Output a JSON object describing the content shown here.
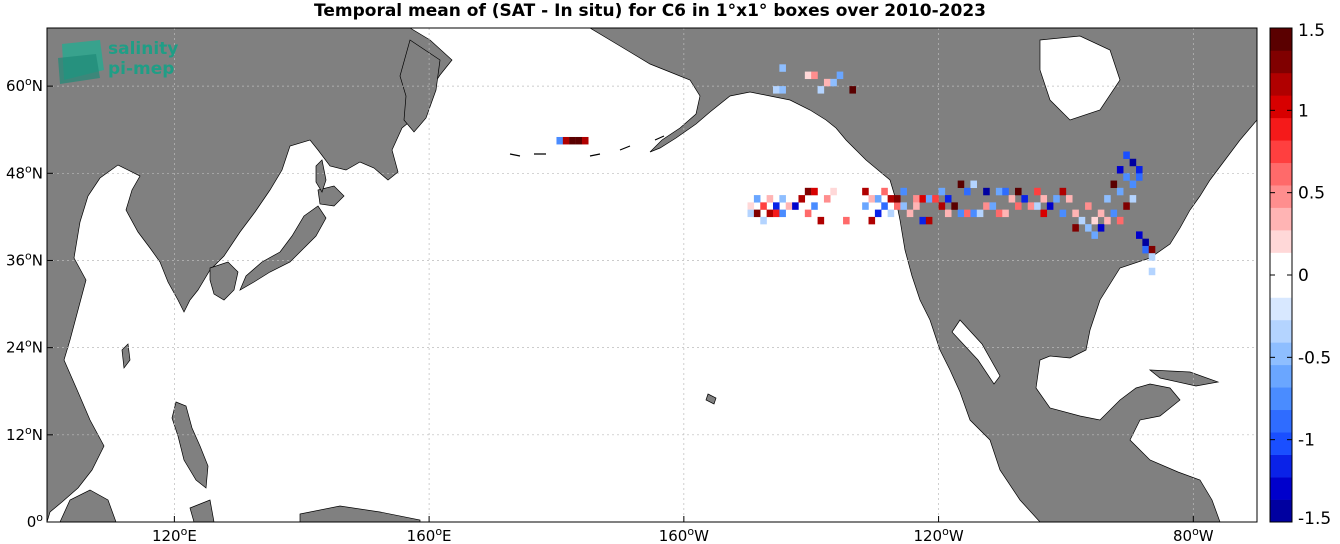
{
  "title": "Temporal mean of (SAT - In situ) for C6 in 1°x1° boxes over 2010-2023",
  "logo": {
    "line1": "salinity",
    "line2": "pi-mep",
    "color": "#1f9e86"
  },
  "colors": {
    "land": "#808080",
    "ocean": "#ffffff",
    "grid": "#bbbbbb"
  },
  "map": {
    "lon_range": [
      100,
      290
    ],
    "lat_range": [
      0,
      68
    ],
    "lon_ticks": [
      {
        "value": 120,
        "base": "120",
        "deg": "o",
        "hemi": "E"
      },
      {
        "value": 160,
        "base": "160",
        "deg": "o",
        "hemi": "E"
      },
      {
        "value": 200,
        "base": "160",
        "deg": "o",
        "hemi": "W"
      },
      {
        "value": 240,
        "base": "120",
        "deg": "o",
        "hemi": "W"
      },
      {
        "value": 280,
        "base": "80",
        "deg": "o",
        "hemi": "W"
      }
    ],
    "lat_ticks": [
      {
        "value": 0,
        "base": "0",
        "deg": "o",
        "hemi": ""
      },
      {
        "value": 12,
        "base": "12",
        "deg": "o",
        "hemi": "N"
      },
      {
        "value": 24,
        "base": "24",
        "deg": "o",
        "hemi": "N"
      },
      {
        "value": 36,
        "base": "36",
        "deg": "o",
        "hemi": "N"
      },
      {
        "value": 48,
        "base": "48",
        "deg": "o",
        "hemi": "N"
      },
      {
        "value": 60,
        "base": "60",
        "deg": "o",
        "hemi": "N"
      }
    ]
  },
  "colorbar": {
    "min": -1.5,
    "max": 1.5,
    "ticks": [
      "1.5",
      "1",
      "0.5",
      "0",
      "-0.5",
      "-1",
      "-1.5"
    ],
    "tick_values": [
      1.5,
      1,
      0.5,
      0,
      -0.5,
      -1,
      -1.5
    ],
    "steps": [
      "#0000a0",
      "#0000cc",
      "#0a22e8",
      "#1a4fff",
      "#2f6cff",
      "#4a8cff",
      "#6aa6ff",
      "#8ebeff",
      "#b4d4ff",
      "#d8e8ff",
      "#ffffff",
      "#ffffff",
      "#ffd8d8",
      "#ffb4b4",
      "#ff8e8e",
      "#ff6a6a",
      "#ff3f3f",
      "#f51a1a",
      "#d80000",
      "#b00000",
      "#800000",
      "#5a0000"
    ]
  },
  "chart_data": {
    "type": "heatmap",
    "value_name": "SAT - In situ",
    "cells": [
      [
        -180,
        52,
        -0.7
      ],
      [
        -179,
        52,
        1.2
      ],
      [
        -178,
        52,
        1.5
      ],
      [
        -177,
        52,
        1.4
      ],
      [
        -176,
        52,
        1.1
      ],
      [
        -150,
        43,
        0.2
      ],
      [
        -150,
        42,
        -0.3
      ],
      [
        -149,
        44,
        -0.6
      ],
      [
        -149,
        42,
        1.3
      ],
      [
        -148,
        43,
        0.7
      ],
      [
        -148,
        41,
        -0.4
      ],
      [
        -147,
        44,
        0.4
      ],
      [
        -147,
        42,
        1.1
      ],
      [
        -146,
        43,
        -1.1
      ],
      [
        -146,
        42,
        0.9
      ],
      [
        -145,
        44,
        -0.5
      ],
      [
        -145,
        42,
        -0.8
      ],
      [
        -144,
        43,
        0.3
      ],
      [
        -143,
        43,
        -1.3
      ],
      [
        -142,
        44,
        1.2
      ],
      [
        -141,
        45,
        1.3
      ],
      [
        -141,
        42,
        0.6
      ],
      [
        -140,
        45,
        1.0
      ],
      [
        -140,
        43,
        -0.7
      ],
      [
        -139,
        41,
        1.2
      ],
      [
        -138,
        44,
        0.5
      ],
      [
        -137,
        45,
        0.2
      ],
      [
        -135,
        41,
        0.6
      ],
      [
        -132,
        45,
        1.2
      ],
      [
        -132,
        43,
        -0.6
      ],
      [
        -131,
        44,
        0.3
      ],
      [
        -131,
        41,
        1.1
      ],
      [
        -130,
        44,
        -0.6
      ],
      [
        -130,
        42,
        -1.2
      ],
      [
        -129,
        45,
        0.6
      ],
      [
        -129,
        43,
        -0.9
      ],
      [
        -128,
        44,
        1.1
      ],
      [
        -128,
        42,
        -0.3
      ],
      [
        -127,
        43,
        0.6
      ],
      [
        -127,
        44,
        1.3
      ],
      [
        -126,
        45,
        -0.7
      ],
      [
        -126,
        43,
        -0.5
      ],
      [
        -125,
        42,
        0.4
      ],
      [
        -124,
        44,
        0.5
      ],
      [
        -124,
        43,
        0.3
      ],
      [
        -123,
        44,
        1.0
      ],
      [
        -123,
        41,
        -1.2
      ],
      [
        -122,
        44,
        -0.6
      ],
      [
        -122,
        41,
        1.1
      ],
      [
        -121,
        44,
        0.8
      ],
      [
        -120,
        45,
        -0.6
      ],
      [
        -120,
        43,
        1.2
      ],
      [
        -119,
        44,
        -1.2
      ],
      [
        -119,
        42,
        0.4
      ],
      [
        -118,
        43,
        1.4
      ],
      [
        -117,
        46,
        1.4
      ],
      [
        -117,
        42,
        -0.8
      ],
      [
        -116,
        45,
        -0.9
      ],
      [
        -116,
        42,
        0.6
      ],
      [
        -115,
        46,
        -0.4
      ],
      [
        -115,
        42,
        -0.7
      ],
      [
        -114,
        42,
        -0.3
      ],
      [
        -113,
        45,
        -1.4
      ],
      [
        -113,
        43,
        0.5
      ],
      [
        -112,
        43,
        -0.6
      ],
      [
        -111,
        45,
        -0.6
      ],
      [
        -111,
        42,
        0.6
      ],
      [
        -110,
        45,
        -0.9
      ],
      [
        -110,
        42,
        0.3
      ],
      [
        -109,
        44,
        0.3
      ],
      [
        -108,
        45,
        1.4
      ],
      [
        -108,
        43,
        0.6
      ],
      [
        -107,
        44,
        -1.2
      ],
      [
        -106,
        43,
        0.5
      ],
      [
        -105,
        45,
        0.8
      ],
      [
        -105,
        43,
        -0.4
      ],
      [
        -104,
        44,
        0.4
      ],
      [
        -104,
        42,
        1.0
      ],
      [
        -103,
        43,
        -1.3
      ],
      [
        -102,
        44,
        -0.6
      ],
      [
        -101,
        45,
        1.1
      ],
      [
        -101,
        42,
        -0.7
      ],
      [
        -100,
        44,
        0.3
      ],
      [
        -99,
        42,
        0.4
      ],
      [
        -99,
        40,
        1.3
      ],
      [
        -98,
        41,
        -0.3
      ],
      [
        -97,
        43,
        0.5
      ],
      [
        -97,
        40,
        -0.5
      ],
      [
        -96,
        41,
        0.2
      ],
      [
        -96,
        39,
        -0.6
      ],
      [
        -95,
        42,
        0.3
      ],
      [
        -95,
        40,
        -1.3
      ],
      [
        -94,
        44,
        -0.5
      ],
      [
        -94,
        41,
        0.4
      ],
      [
        -93,
        46,
        1.5
      ],
      [
        -93,
        42,
        -0.8
      ],
      [
        -92,
        48,
        -1.3
      ],
      [
        -92,
        45,
        -0.6
      ],
      [
        -92,
        41,
        0.6
      ],
      [
        -91,
        50,
        -1.0
      ],
      [
        -91,
        47,
        -0.8
      ],
      [
        -91,
        43,
        1.3
      ],
      [
        -90,
        49,
        -1.4
      ],
      [
        -90,
        46,
        -0.7
      ],
      [
        -90,
        44,
        -0.4
      ],
      [
        -89,
        48,
        -1.1
      ],
      [
        -89,
        47,
        -0.9
      ],
      [
        -89,
        39,
        -1.3
      ],
      [
        -88,
        38,
        -1.5
      ],
      [
        -88,
        37,
        -0.9
      ],
      [
        -87,
        37,
        1.3
      ],
      [
        -87,
        36,
        -0.4
      ],
      [
        -87,
        34,
        -0.3
      ],
      [
        -141,
        61,
        0.2
      ],
      [
        -140,
        61,
        0.5
      ],
      [
        -139,
        59,
        -0.4
      ],
      [
        -138,
        60,
        0.3
      ],
      [
        -137,
        60,
        -0.5
      ],
      [
        -136,
        61,
        -0.6
      ],
      [
        -134,
        59,
        1.4
      ],
      [
        -146,
        59,
        -0.4
      ],
      [
        -145,
        59,
        -0.5
      ],
      [
        -145,
        62,
        -0.5
      ]
    ]
  }
}
